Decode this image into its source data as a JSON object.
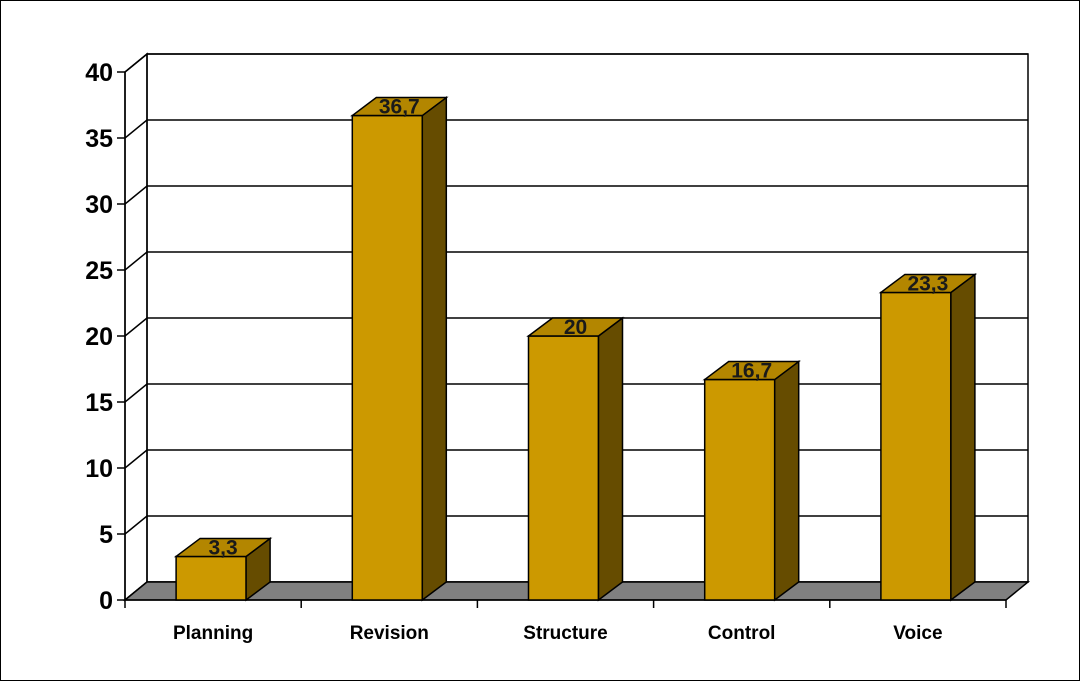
{
  "chart_data": {
    "type": "bar",
    "categories": [
      "Planning",
      "Revision",
      "Structure",
      "Control",
      "Voice"
    ],
    "values": [
      3.3,
      36.7,
      20,
      16.7,
      23.3
    ],
    "value_labels": [
      "3,3",
      "36,7",
      "20",
      "16,7",
      "23,3"
    ],
    "y_ticks": [
      0,
      5,
      10,
      15,
      20,
      25,
      30,
      35,
      40
    ],
    "ylim": [
      0,
      40
    ],
    "grid": true,
    "legend": "none",
    "three_d": true,
    "colors": {
      "bar_front": "#cc9900",
      "bar_top": "#b38600",
      "bar_side": "#664c00",
      "floor": "#808080",
      "gridline": "#000000"
    }
  }
}
